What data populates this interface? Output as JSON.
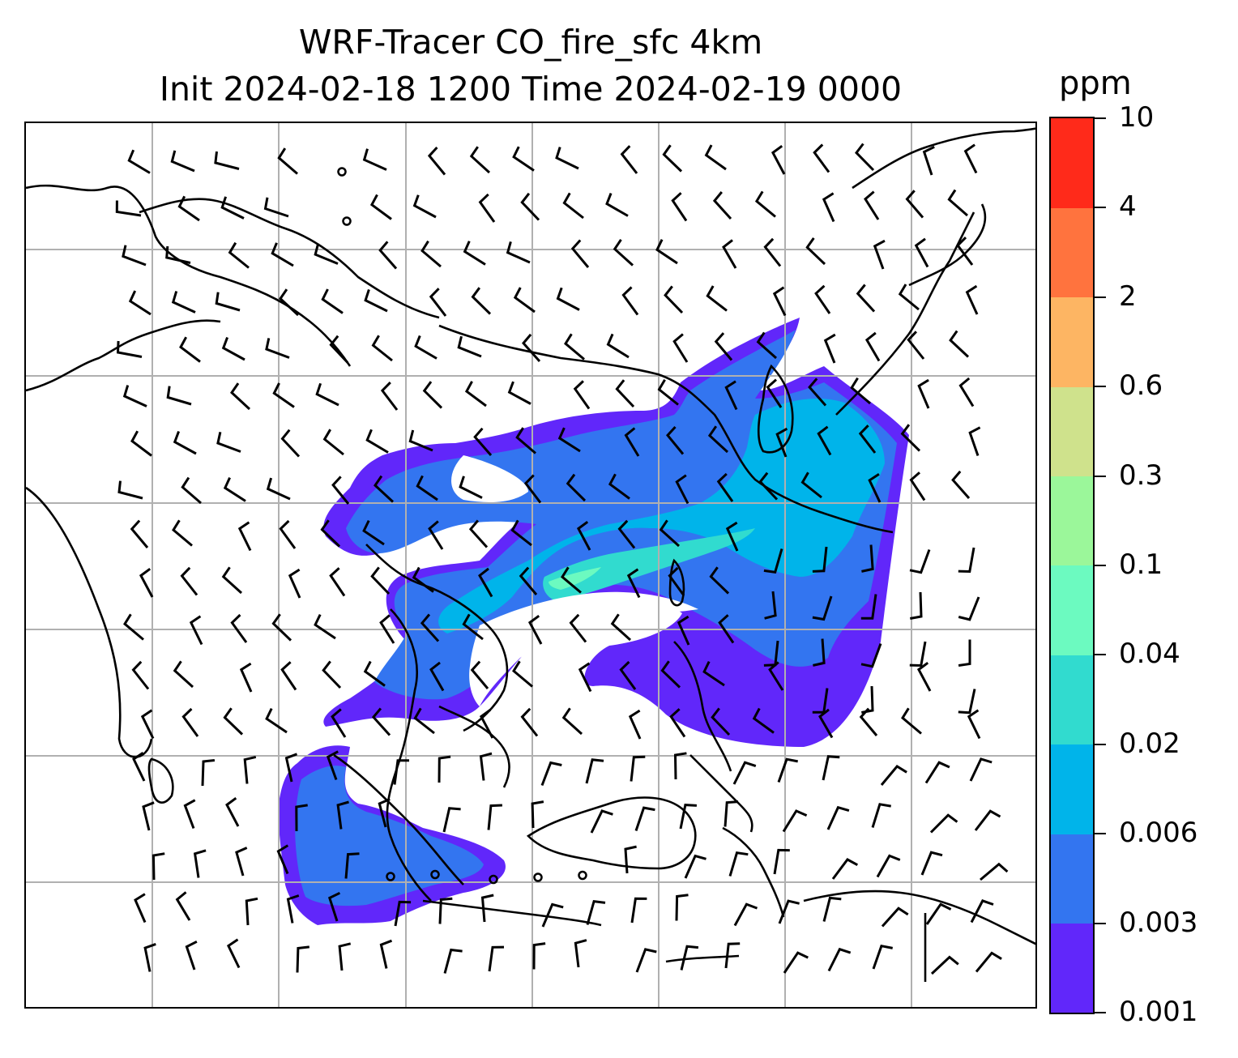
{
  "title": {
    "line1": "WRF-Tracer CO_fire_sfc 4km",
    "line2": "Init 2024-02-18 1200 Time 2024-02-19 0000"
  },
  "colorbar": {
    "unit": "ppm",
    "levels": [
      "0.001",
      "0.003",
      "0.006",
      "0.02",
      "0.04",
      "0.1",
      "0.3",
      "0.6",
      "2",
      "4",
      "10"
    ],
    "colors": [
      "#6127fa",
      "#3375f0",
      "#00b4ea",
      "#31dbcf",
      "#6cfac0",
      "#9bf79a",
      "#cfe28c",
      "#fdb563",
      "#ff733e",
      "#ff2a1a"
    ]
  },
  "map": {
    "plume_colors": {
      "low": "#6127fa",
      "mid": "#3375f0",
      "high": "#00b4ea",
      "peak": "#31dbcf"
    },
    "gridline_color": "#b0b0b0",
    "coastline_color": "#000000",
    "wind_barb_color": "#000000"
  }
}
